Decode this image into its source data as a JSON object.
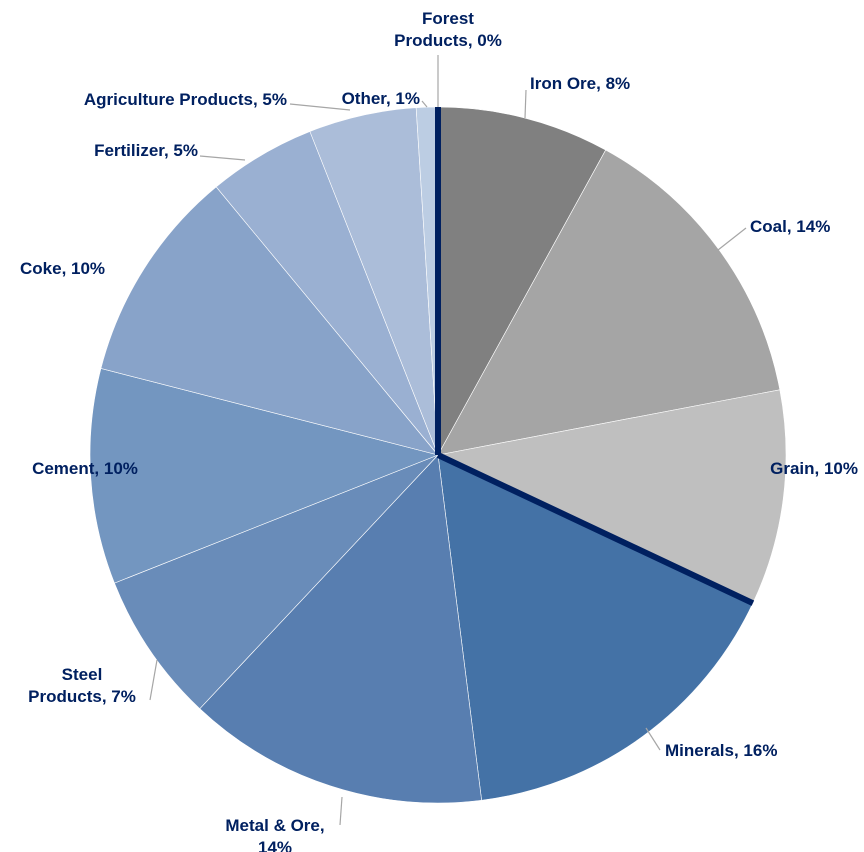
{
  "chart_data": {
    "type": "pie",
    "values": [
      8,
      14,
      10,
      16,
      14,
      7,
      10,
      10,
      5,
      5,
      1,
      0
    ],
    "value_labels": [
      [
        "Iron Ore, 8%"
      ],
      [
        "Coal, 14%"
      ],
      [
        "Grain, 10%"
      ],
      [
        "Minerals, 16%"
      ],
      [
        "Metal & Ore,",
        "14%"
      ],
      [
        "Steel",
        "Products, 7%"
      ],
      [
        "Cement, 10%"
      ],
      [
        "Coke, 10%"
      ],
      [
        "Fertilizer, 5%"
      ],
      [
        "Agriculture Products, 5%"
      ],
      [
        "Other, 1%"
      ],
      [
        "Forest",
        "Products, 0%"
      ]
    ],
    "colors": [
      "#808080",
      "#a5a5a5",
      "#bfbfbf",
      "#4472a6",
      "#587eb0",
      "#698cb9",
      "#7396c0",
      "#88a3c9",
      "#9ab0d2",
      "#abbdd9",
      "#bccde3",
      "#c8d6e8"
    ]
  }
}
